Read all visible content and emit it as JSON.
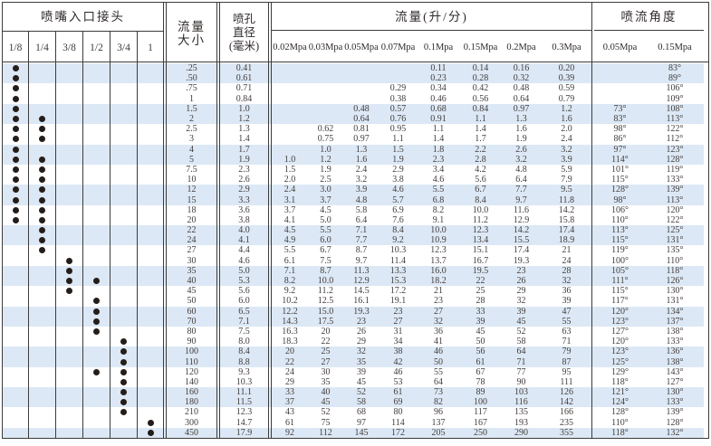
{
  "table_title_semantic": "nozzle flow and spray angle specification table",
  "header": {
    "inlet_title": "喷嘴入口接头",
    "inlet_sizes": [
      "1/8",
      "1/4",
      "3/8",
      "1/2",
      "3/4",
      "1"
    ],
    "flow_size_title": "流量\n大小",
    "orifice_title": "喷孔\n直径\n(毫米)",
    "flow_title": "流量(升/分)",
    "flow_pressures": [
      "0.02Mpa",
      "0.03Mpa",
      "0.05Mpa",
      "0.07Mpa",
      "0.1Mpa",
      "0.15Mpa",
      "0.2Mpa",
      "0.3Mpa"
    ],
    "angle_title": "喷流角度",
    "angle_pressures": [
      "0.05Mpa",
      "0.15Mpa"
    ]
  },
  "colors": {
    "stripe": "#dce8f5",
    "border": "#3c3c3c",
    "text": "#433d3c",
    "dot": "#241d1a"
  },
  "chart_data": {
    "type": "table",
    "columns": [
      "流量大小",
      "喷孔直径(毫米)",
      "0.02Mpa",
      "0.03Mpa",
      "0.05Mpa",
      "0.07Mpa",
      "0.1Mpa",
      "0.15Mpa",
      "0.2Mpa",
      "0.3Mpa",
      "喷流角度0.05Mpa",
      "喷流角度0.15Mpa",
      "接头"
    ],
    "note": "flows in 升/分; blank string means no value printed"
  },
  "rows": [
    {
      "size": ".25",
      "orifice": "0.41",
      "inlets": [
        "1/8"
      ],
      "flows": [
        "",
        "",
        "",
        "",
        "0.11",
        "0.14",
        "0.16",
        "0.20"
      ],
      "angles": [
        "",
        "83°"
      ]
    },
    {
      "size": ".50",
      "orifice": "0.61",
      "inlets": [
        "1/8"
      ],
      "flows": [
        "",
        "",
        "",
        "",
        "0.23",
        "0.28",
        "0.32",
        "0.39"
      ],
      "angles": [
        "",
        "89°"
      ]
    },
    {
      "size": ".75",
      "orifice": "0.71",
      "inlets": [
        "1/8"
      ],
      "flows": [
        "",
        "",
        "",
        "0.29",
        "0.34",
        "0.42",
        "0.48",
        "0.59"
      ],
      "angles": [
        "",
        "106°"
      ]
    },
    {
      "size": "1",
      "orifice": "0.84",
      "inlets": [
        "1/8"
      ],
      "flows": [
        "",
        "",
        "",
        "0.38",
        "0.46",
        "0.56",
        "0.64",
        "0.79"
      ],
      "angles": [
        "",
        "109°"
      ]
    },
    {
      "size": "1.5",
      "orifice": "1.0",
      "inlets": [
        "1/8"
      ],
      "flows": [
        "",
        "",
        "0.48",
        "0.57",
        "0.68",
        "0.84",
        "0.97",
        "1.2"
      ],
      "angles": [
        "73°",
        "108°"
      ]
    },
    {
      "size": "2",
      "orifice": "1.2",
      "inlets": [
        "1/8",
        "1/4"
      ],
      "flows": [
        "",
        "",
        "0.64",
        "0.76",
        "0.91",
        "1.1",
        "1.3",
        "1.6"
      ],
      "angles": [
        "83°",
        "113°"
      ]
    },
    {
      "size": "2.5",
      "orifice": "1.3",
      "inlets": [
        "1/8",
        "1/4"
      ],
      "flows": [
        "",
        "0.62",
        "0.81",
        "0.95",
        "1.1",
        "1.4",
        "1.6",
        "2.0"
      ],
      "angles": [
        "98°",
        "122°"
      ]
    },
    {
      "size": "3",
      "orifice": "1.4",
      "inlets": [
        "1/8",
        "1/4"
      ],
      "flows": [
        "",
        "0.75",
        "0.97",
        "1.1",
        "1.4",
        "1.7",
        "1.9",
        "2.4"
      ],
      "angles": [
        "86°",
        "112°"
      ]
    },
    {
      "size": "4",
      "orifice": "1.7",
      "inlets": [
        "1/8"
      ],
      "flows": [
        "",
        "1.0",
        "1.3",
        "1.5",
        "1.8",
        "2.2",
        "2.6",
        "3.2"
      ],
      "angles": [
        "97°",
        "123°"
      ]
    },
    {
      "size": "5",
      "orifice": "1.9",
      "inlets": [
        "1/8",
        "1/4"
      ],
      "flows": [
        "1.0",
        "1.2",
        "1.6",
        "1.9",
        "2.3",
        "2.8",
        "3.2",
        "3.9"
      ],
      "angles": [
        "114°",
        "128°"
      ]
    },
    {
      "size": "7.5",
      "orifice": "2.3",
      "inlets": [
        "1/8",
        "1/4"
      ],
      "flows": [
        "1.5",
        "1.9",
        "2.4",
        "2.9",
        "3.4",
        "4.2",
        "4.8",
        "5.9"
      ],
      "angles": [
        "101°",
        "119°"
      ]
    },
    {
      "size": "10",
      "orifice": "2.6",
      "inlets": [
        "1/8",
        "1/4"
      ],
      "flows": [
        "2.0",
        "2.5",
        "3.2",
        "3.8",
        "4.6",
        "5.6",
        "6.4",
        "7.9"
      ],
      "angles": [
        "115°",
        "133°"
      ]
    },
    {
      "size": "12",
      "orifice": "2.9",
      "inlets": [
        "1/8",
        "1/4"
      ],
      "flows": [
        "2.4",
        "3.0",
        "3.9",
        "4.6",
        "5.5",
        "6.7",
        "7.7",
        "9.5"
      ],
      "angles": [
        "128°",
        "139°"
      ]
    },
    {
      "size": "15",
      "orifice": "3.3",
      "inlets": [
        "1/8",
        "1/4"
      ],
      "flows": [
        "3.1",
        "3.7",
        "4.8",
        "5.7",
        "6.8",
        "8.4",
        "9.7",
        "11.8"
      ],
      "angles": [
        "98°",
        "113°"
      ]
    },
    {
      "size": "18",
      "orifice": "3.6",
      "inlets": [
        "1/8",
        "1/4"
      ],
      "flows": [
        "3.7",
        "4.5",
        "5.8",
        "6.9",
        "8.2",
        "10.0",
        "11.6",
        "14.2"
      ],
      "angles": [
        "106°",
        "120°"
      ]
    },
    {
      "size": "20",
      "orifice": "3.8",
      "inlets": [
        "1/8",
        "1/4"
      ],
      "flows": [
        "4.1",
        "5.0",
        "6.4",
        "7.6",
        "9.1",
        "11.2",
        "12.9",
        "15.8"
      ],
      "angles": [
        "110°",
        "122°"
      ]
    },
    {
      "size": "22",
      "orifice": "4.0",
      "inlets": [
        "1/4"
      ],
      "flows": [
        "4.5",
        "5.5",
        "7.1",
        "8.4",
        "10.0",
        "12.3",
        "14.2",
        "17.4"
      ],
      "angles": [
        "113°",
        "125°"
      ]
    },
    {
      "size": "24",
      "orifice": "4.1",
      "inlets": [
        "1/4"
      ],
      "flows": [
        "4.9",
        "6.0",
        "7.7",
        "9.2",
        "10.9",
        "13.4",
        "15.5",
        "18.9"
      ],
      "angles": [
        "115°",
        "131°"
      ]
    },
    {
      "size": "27",
      "orifice": "4.4",
      "inlets": [
        "1/4"
      ],
      "flows": [
        "5.5",
        "6.7",
        "8.7",
        "10.3",
        "12.3",
        "15.1",
        "17.4",
        "21"
      ],
      "angles": [
        "119°",
        "135°"
      ]
    },
    {
      "size": "30",
      "orifice": "4.6",
      "inlets": [
        "3/8"
      ],
      "flows": [
        "6.1",
        "7.5",
        "9.7",
        "11.4",
        "13.7",
        "16.7",
        "19.3",
        "24"
      ],
      "angles": [
        "100°",
        "110°"
      ]
    },
    {
      "size": "35",
      "orifice": "5.0",
      "inlets": [
        "3/8"
      ],
      "flows": [
        "7.1",
        "8.7",
        "11.3",
        "13.3",
        "16.0",
        "19.5",
        "23",
        "28"
      ],
      "angles": [
        "105°",
        "118°"
      ]
    },
    {
      "size": "40",
      "orifice": "5.3",
      "inlets": [
        "3/8",
        "1/2"
      ],
      "flows": [
        "8.2",
        "10.0",
        "12.9",
        "15.3",
        "18.2",
        "22",
        "26",
        "32"
      ],
      "angles": [
        "111°",
        "126°"
      ]
    },
    {
      "size": "45",
      "orifice": "5.6",
      "inlets": [
        "3/8"
      ],
      "flows": [
        "9.2",
        "11.2",
        "14.5",
        "17.2",
        "21",
        "25",
        "29",
        "36"
      ],
      "angles": [
        "115°",
        "130°"
      ]
    },
    {
      "size": "50",
      "orifice": "6.0",
      "inlets": [
        "1/2"
      ],
      "flows": [
        "10.2",
        "12.5",
        "16.1",
        "19.1",
        "23",
        "28",
        "32",
        "39"
      ],
      "angles": [
        "117°",
        "131°"
      ]
    },
    {
      "size": "60",
      "orifice": "6.5",
      "inlets": [
        "1/2"
      ],
      "flows": [
        "12.2",
        "15.0",
        "19.3",
        "23",
        "27",
        "33",
        "39",
        "47"
      ],
      "angles": [
        "120°",
        "134°"
      ]
    },
    {
      "size": "70",
      "orifice": "7.1",
      "inlets": [
        "1/2"
      ],
      "flows": [
        "14.3",
        "17.5",
        "23",
        "27",
        "32",
        "39",
        "45",
        "55"
      ],
      "angles": [
        "123°",
        "137°"
      ]
    },
    {
      "size": "80",
      "orifice": "7.5",
      "inlets": [
        "1/2"
      ],
      "flows": [
        "16.3",
        "20",
        "26",
        "31",
        "36",
        "45",
        "52",
        "63"
      ],
      "angles": [
        "127°",
        "138°"
      ]
    },
    {
      "size": "90",
      "orifice": "8.0",
      "inlets": [
        "3/4"
      ],
      "flows": [
        "18.3",
        "22",
        "29",
        "34",
        "41",
        "50",
        "58",
        "71"
      ],
      "angles": [
        "120°",
        "133°"
      ]
    },
    {
      "size": "100",
      "orifice": "8.4",
      "inlets": [
        "3/4"
      ],
      "flows": [
        "20",
        "25",
        "32",
        "38",
        "46",
        "56",
        "64",
        "79"
      ],
      "angles": [
        "123°",
        "136°"
      ]
    },
    {
      "size": "110",
      "orifice": "8.8",
      "inlets": [
        "3/4"
      ],
      "flows": [
        "22",
        "27",
        "35",
        "42",
        "50",
        "61",
        "71",
        "87"
      ],
      "angles": [
        "125°",
        "138°"
      ]
    },
    {
      "size": "120",
      "orifice": "9.3",
      "inlets": [
        "1/2",
        "3/4"
      ],
      "flows": [
        "24",
        "30",
        "39",
        "46",
        "55",
        "67",
        "77",
        "95"
      ],
      "angles": [
        "129°",
        "143°"
      ]
    },
    {
      "size": "140",
      "orifice": "10.3",
      "inlets": [
        "3/4"
      ],
      "flows": [
        "29",
        "35",
        "45",
        "53",
        "64",
        "78",
        "90",
        "111"
      ],
      "angles": [
        "118°",
        "127°"
      ]
    },
    {
      "size": "160",
      "orifice": "11.1",
      "inlets": [
        "3/4"
      ],
      "flows": [
        "33",
        "40",
        "52",
        "61",
        "73",
        "89",
        "103",
        "126"
      ],
      "angles": [
        "121°",
        "130°"
      ]
    },
    {
      "size": "180",
      "orifice": "11.5",
      "inlets": [
        "3/4"
      ],
      "flows": [
        "37",
        "45",
        "58",
        "69",
        "82",
        "100",
        "116",
        "142"
      ],
      "angles": [
        "124°",
        "133°"
      ]
    },
    {
      "size": "210",
      "orifice": "12.3",
      "inlets": [
        "3/4"
      ],
      "flows": [
        "43",
        "52",
        "68",
        "80",
        "96",
        "117",
        "135",
        "166"
      ],
      "angles": [
        "128°",
        "139°"
      ]
    },
    {
      "size": "300",
      "orifice": "14.7",
      "inlets": [
        "1"
      ],
      "flows": [
        "61",
        "75",
        "97",
        "114",
        "137",
        "167",
        "193",
        "235"
      ],
      "angles": [
        "110°",
        "128°"
      ]
    },
    {
      "size": "450",
      "orifice": "17.9",
      "inlets": [
        "1"
      ],
      "flows": [
        "92",
        "112",
        "145",
        "172",
        "205",
        "250",
        "290",
        "355"
      ],
      "angles": [
        "118°",
        "132°"
      ]
    }
  ]
}
